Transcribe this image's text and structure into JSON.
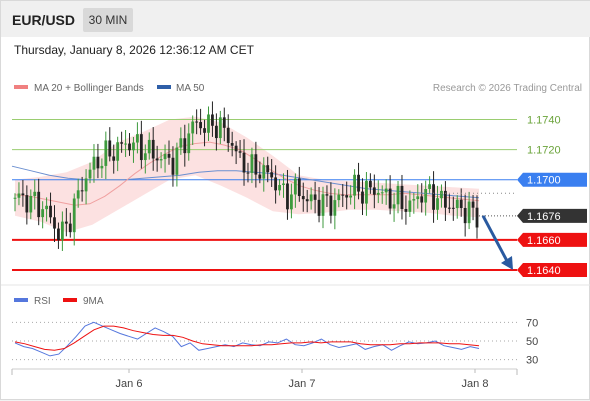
{
  "header": {
    "symbol": "EUR/USD",
    "timeframe": "30 MIN",
    "datetime": "Thursday, January 8, 2026 12:36:12 AM CET"
  },
  "legend": {
    "ma20": {
      "label": "MA 20 + Bollinger Bands",
      "color": "#f08080"
    },
    "ma50": {
      "label": "MA 50",
      "color": "#2e5fa8"
    },
    "credit": "Research © 2026 Trading Central"
  },
  "rsi_legend": {
    "rsi": {
      "label": "RSI",
      "color": "#5577dd"
    },
    "ma9": {
      "label": "9MA",
      "color": "#ee1111"
    }
  },
  "chart_data": [
    {
      "type": "candlestick",
      "title": "EUR/USD 30 MIN",
      "price_range": [
        1.163,
        1.1755
      ],
      "x_labels": [
        "Jan 6",
        "Jan 7",
        "Jan 8"
      ],
      "current_price": {
        "label": "1.1676",
        "value": 1.1676
      },
      "levels": [
        {
          "label": "1.1740",
          "value": 1.174,
          "color": "#9acd70",
          "kind": "resistance"
        },
        {
          "label": "1.1720",
          "value": 1.172,
          "color": "#9acd70",
          "kind": "resistance"
        },
        {
          "label": "1.1700",
          "value": 1.17,
          "color": "#3a7ff0",
          "kind": "pivot"
        },
        {
          "label": "1.1660",
          "value": 1.166,
          "color": "#ee1111",
          "kind": "support"
        },
        {
          "label": "1.1640",
          "value": 1.164,
          "color": "#ee1111",
          "kind": "support"
        }
      ],
      "price_path": [
        1.1688,
        1.1687,
        1.1684,
        1.1677,
        1.1662,
        1.1676,
        1.1698,
        1.171,
        1.1716,
        1.172,
        1.1725,
        1.1722,
        1.1718,
        1.1714,
        1.1712,
        1.1725,
        1.1738,
        1.1735,
        1.1737,
        1.1728,
        1.1712,
        1.1707,
        1.1706,
        1.17,
        1.1688,
        1.1694,
        1.1686,
        1.1685,
        1.1684,
        1.1688,
        1.1695,
        1.1692,
        1.1694,
        1.1688,
        1.1686,
        1.1682,
        1.1691,
        1.169,
        1.1685,
        1.1682,
        1.168,
        1.1676
      ],
      "forecast_arrow": {
        "from": 1.1676,
        "to": 1.164
      },
      "ma20": [
        1.169,
        1.1689,
        1.1687,
        1.1685,
        1.1683,
        1.1684,
        1.1689,
        1.1696,
        1.1704,
        1.1711,
        1.1717,
        1.1722,
        1.1724,
        1.1725,
        1.1723,
        1.172,
        1.1714,
        1.1707,
        1.1701,
        1.1696,
        1.1693,
        1.1691,
        1.169,
        1.169,
        1.169,
        1.169,
        1.1691,
        1.169,
        1.1689,
        1.1688,
        1.1687,
        1.1686
      ],
      "ma50": [
        1.1709,
        1.1706,
        1.1703,
        1.1701,
        1.17,
        1.17,
        1.17,
        1.1701,
        1.1702,
        1.1703,
        1.1705,
        1.1706,
        1.1706,
        1.1705,
        1.1704,
        1.1702,
        1.17,
        1.1698,
        1.1696,
        1.1694,
        1.1693,
        1.1692,
        1.1691,
        1.169,
        1.1689,
        1.1688
      ],
      "bb_upper": [
        1.17,
        1.1702,
        1.1705,
        1.1712,
        1.1725,
        1.1732,
        1.174,
        1.1742,
        1.1738,
        1.1728,
        1.1716,
        1.1703,
        1.17,
        1.1699,
        1.1698,
        1.1697,
        1.1696,
        1.1695,
        1.1694
      ],
      "bb_lower": [
        1.1676,
        1.1672,
        1.1665,
        1.167,
        1.168,
        1.169,
        1.17,
        1.1703,
        1.1696,
        1.1688,
        1.1679,
        1.1677,
        1.1678,
        1.168,
        1.168,
        1.1679,
        1.1678,
        1.1676,
        1.1675
      ]
    },
    {
      "type": "line",
      "title": "RSI",
      "y_range": [
        20,
        80
      ],
      "ticks": [
        {
          "label": "70",
          "value": 70
        },
        {
          "label": "50",
          "value": 50
        },
        {
          "label": "30",
          "value": 30
        }
      ],
      "series": [
        {
          "name": "RSI",
          "values": [
            48,
            44,
            42,
            38,
            34,
            36,
            45,
            55,
            66,
            70,
            66,
            62,
            58,
            55,
            52,
            58,
            64,
            60,
            55,
            44,
            48,
            40,
            42,
            44,
            46,
            44,
            48,
            46,
            45,
            49,
            48,
            52,
            46,
            45,
            48,
            52,
            46,
            43,
            45,
            47,
            41,
            44,
            46,
            40,
            45,
            49,
            47,
            48,
            50,
            45,
            43,
            41,
            44,
            42
          ]
        },
        {
          "name": "9MA",
          "values": [
            49,
            47,
            44,
            41,
            40,
            42,
            48,
            55,
            62,
            66,
            66,
            64,
            61,
            59,
            57,
            56,
            56,
            54,
            50,
            47,
            46,
            45,
            45,
            45,
            45,
            46,
            46,
            47,
            48,
            48,
            49,
            48,
            49,
            49,
            49,
            47,
            46,
            46,
            46,
            47,
            47,
            48,
            48,
            48,
            47,
            47,
            46,
            45
          ]
        }
      ]
    }
  ]
}
